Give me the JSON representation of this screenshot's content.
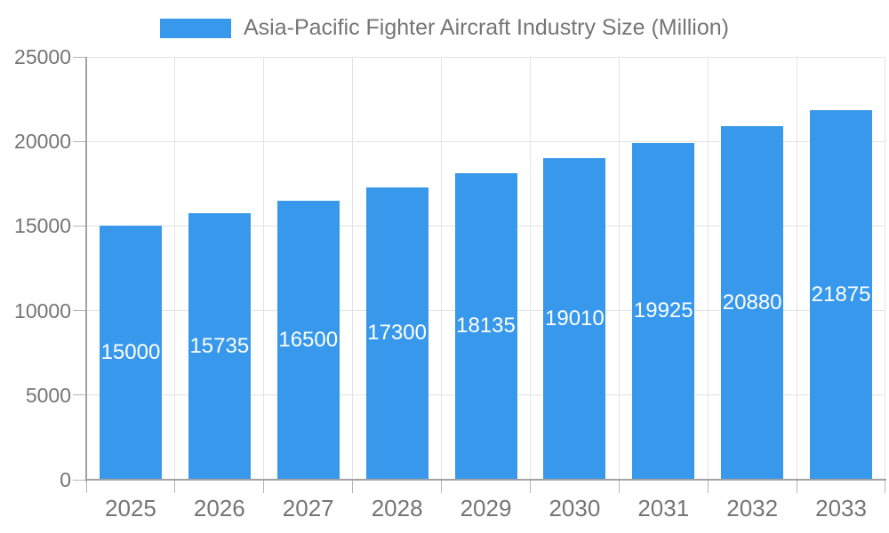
{
  "legend": {
    "label": "Asia-Pacific Fighter Aircraft Industry Size (Million)"
  },
  "chart_data": {
    "type": "bar",
    "title": "Asia-Pacific Fighter Aircraft Industry Size (Million)",
    "categories": [
      "2025",
      "2026",
      "2027",
      "2028",
      "2029",
      "2030",
      "2031",
      "2032",
      "2033"
    ],
    "values": [
      15000,
      15735,
      16500,
      17300,
      18135,
      19010,
      19925,
      20880,
      21875
    ],
    "xlabel": "",
    "ylabel": "",
    "ylim": [
      0,
      25000
    ],
    "yticks": [
      0,
      5000,
      10000,
      15000,
      20000,
      25000
    ],
    "grid": "on",
    "legend_position": "top-center",
    "bar_labels_inside": "vertically-centered",
    "colors": {
      "bar": "#3899EC",
      "bar_label": "#FFFFFF",
      "axis_text": "#757575",
      "grid": "#E3E3E3",
      "axis_line": "#A2A2A2",
      "tick": "#B5B5B5",
      "background": "#FFFFFF"
    }
  }
}
